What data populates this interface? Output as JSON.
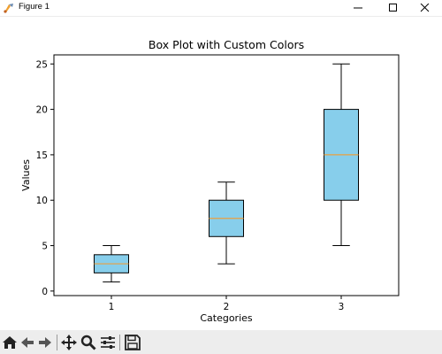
{
  "window": {
    "title": "Figure 1"
  },
  "toolbar": {
    "buttons": [
      "home-icon",
      "back-arrow-icon",
      "forward-arrow-icon",
      "pan-icon",
      "zoom-icon",
      "configure-subplots-icon",
      "save-icon"
    ]
  },
  "chart_data": {
    "type": "box",
    "title": "Box Plot with Custom Colors",
    "xlabel": "Categories",
    "ylabel": "Values",
    "categories": [
      "1",
      "2",
      "3"
    ],
    "ylim": [
      -0.5,
      26
    ],
    "yticks": [
      0,
      5,
      10,
      15,
      20,
      25
    ],
    "boxes": [
      {
        "category": "1",
        "whislo": 1,
        "q1": 2,
        "med": 3,
        "q3": 4,
        "whishi": 5
      },
      {
        "category": "2",
        "whislo": 3,
        "q1": 6,
        "med": 8,
        "q3": 10,
        "whishi": 12
      },
      {
        "category": "3",
        "whislo": 5,
        "q1": 10,
        "med": 15,
        "q3": 20,
        "whishi": 25
      }
    ],
    "colors": {
      "box_fill": "#87ceeb",
      "box_edge": "#000000",
      "median": "#e8a040",
      "whisker": "#000000"
    },
    "grid": false
  }
}
